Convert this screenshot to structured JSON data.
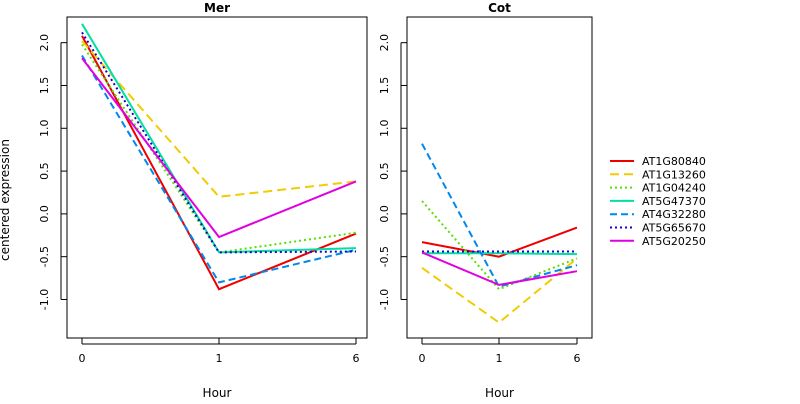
{
  "figure": {
    "ylabel": "centered expression"
  },
  "chart_data": [
    {
      "type": "line",
      "title": "Mer",
      "xlabel": "Hour",
      "ylabel": "centered expression",
      "x": [
        "0",
        "1",
        "6"
      ],
      "y_ticks": [
        "2.0",
        "1.5",
        "1.0",
        "0.5",
        "0.0",
        "-0.5",
        "-1.0"
      ],
      "ylim": [
        -1.45,
        2.3
      ],
      "series": [
        {
          "name": "AT1G80840",
          "color": "#ee0000",
          "dash": "solid",
          "values": [
            2.08,
            -0.88,
            -0.23
          ]
        },
        {
          "name": "AT1G13260",
          "color": "#f0cc00",
          "dash": "longdash",
          "values": [
            2.02,
            0.2,
            0.38
          ]
        },
        {
          "name": "AT1G04240",
          "color": "#55e000",
          "dash": "dotted",
          "values": [
            1.98,
            -0.45,
            -0.22
          ]
        },
        {
          "name": "AT5G47370",
          "color": "#00e0a0",
          "dash": "solid",
          "values": [
            2.22,
            -0.45,
            -0.4
          ]
        },
        {
          "name": "AT4G32280",
          "color": "#0088ee",
          "dash": "dashed",
          "values": [
            1.85,
            -0.8,
            -0.42
          ]
        },
        {
          "name": "AT5G65670",
          "color": "#1a00cc",
          "dash": "dotted",
          "values": [
            2.12,
            -0.45,
            -0.44
          ]
        },
        {
          "name": "AT5G20250",
          "color": "#e000e0",
          "dash": "solid",
          "values": [
            1.82,
            -0.27,
            0.38
          ]
        }
      ]
    },
    {
      "type": "line",
      "title": "Cot",
      "xlabel": "Hour",
      "ylabel": "",
      "x": [
        "0",
        "1",
        "6"
      ],
      "y_ticks": [
        "2.0",
        "1.5",
        "1.0",
        "0.5",
        "0.0",
        "-0.5",
        "-1.0"
      ],
      "ylim": [
        -1.45,
        2.3
      ],
      "series": [
        {
          "name": "AT1G80840",
          "color": "#ee0000",
          "dash": "solid",
          "values": [
            -0.33,
            -0.5,
            -0.16
          ]
        },
        {
          "name": "AT1G13260",
          "color": "#f0cc00",
          "dash": "longdash",
          "values": [
            -0.63,
            -1.27,
            -0.52
          ]
        },
        {
          "name": "AT1G04240",
          "color": "#55e000",
          "dash": "dotted",
          "values": [
            0.15,
            -0.88,
            -0.52
          ]
        },
        {
          "name": "AT5G47370",
          "color": "#00e0a0",
          "dash": "solid",
          "values": [
            -0.46,
            -0.46,
            -0.47
          ]
        },
        {
          "name": "AT4G32280",
          "color": "#0088ee",
          "dash": "dashed",
          "values": [
            0.82,
            -0.85,
            -0.6
          ]
        },
        {
          "name": "AT5G65670",
          "color": "#1a00cc",
          "dash": "dotted",
          "values": [
            -0.44,
            -0.44,
            -0.44
          ]
        },
        {
          "name": "AT5G20250",
          "color": "#e000e0",
          "dash": "solid",
          "values": [
            -0.45,
            -0.83,
            -0.67
          ]
        }
      ]
    }
  ],
  "legend": {
    "placement": "right",
    "entries": [
      "AT1G80840",
      "AT1G13260",
      "AT1G04240",
      "AT5G47370",
      "AT4G32280",
      "AT5G65670",
      "AT5G20250"
    ]
  }
}
